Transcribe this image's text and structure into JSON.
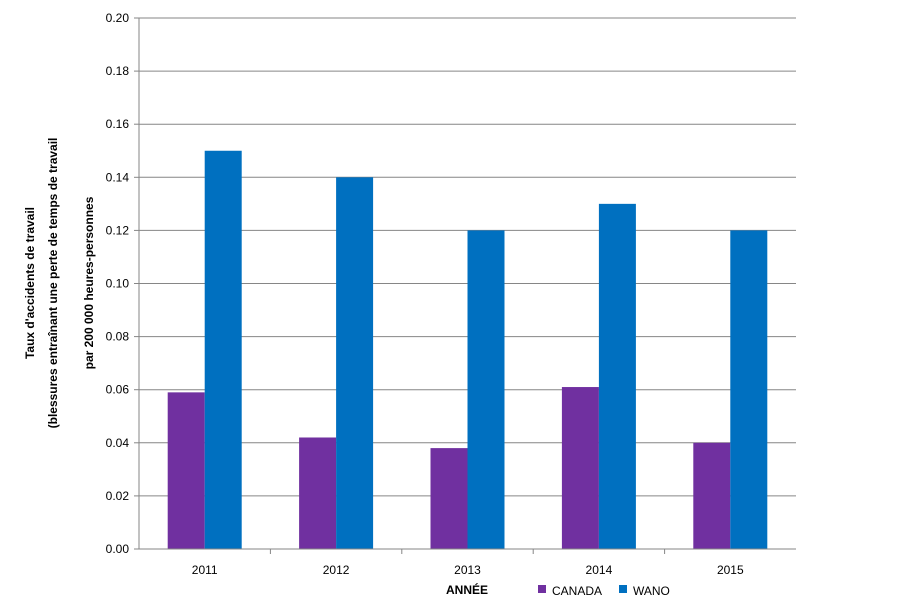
{
  "chart_data": {
    "type": "bar",
    "categories": [
      "2011",
      "2012",
      "2013",
      "2014",
      "2015"
    ],
    "series": [
      {
        "name": "CANADA",
        "values": [
          0.059,
          0.042,
          0.038,
          0.061,
          0.04
        ],
        "color": "#7030A0"
      },
      {
        "name": "WANO",
        "values": [
          0.15,
          0.14,
          0.12,
          0.13,
          0.12
        ],
        "color": "#0070C0"
      }
    ],
    "title": "",
    "xlabel": "ANNÉE",
    "ylabel": [
      "Taux d'accidents de travail",
      "(blessures entraînant une perte de temps de travail",
      "par 200 000 heures-personnes"
    ],
    "ylim": [
      0,
      0.2
    ],
    "yticks": [
      "0.00",
      "0.02",
      "0.04",
      "0.06",
      "0.08",
      "0.10",
      "0.12",
      "0.14",
      "0.16",
      "0.18",
      "0.20"
    ],
    "grid": true,
    "legend_position": "bottom"
  }
}
